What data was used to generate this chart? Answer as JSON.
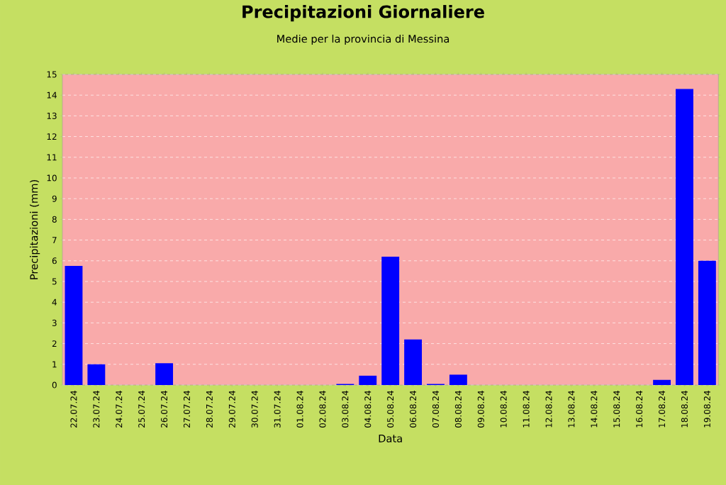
{
  "chart_data": {
    "type": "bar",
    "title": "Precipitazioni Giornaliere",
    "subtitle": "Medie per la provincia di Messina",
    "xlabel": "Data",
    "ylabel": "Precipitazioni (mm)",
    "categories": [
      "22.07.24",
      "23.07.24",
      "24.07.24",
      "25.07.24",
      "26.07.24",
      "27.07.24",
      "28.07.24",
      "29.07.24",
      "30.07.24",
      "31.07.24",
      "01.08.24",
      "02.08.24",
      "03.08.24",
      "04.08.24",
      "05.08.24",
      "06.08.24",
      "07.08.24",
      "08.08.24",
      "09.08.24",
      "10.08.24",
      "11.08.24",
      "12.08.24",
      "13.08.24",
      "14.08.24",
      "15.08.24",
      "16.08.24",
      "17.08.24",
      "18.08.24",
      "19.08.24"
    ],
    "values": [
      5.75,
      1.0,
      0,
      0,
      1.05,
      0,
      0,
      0,
      0,
      0,
      0,
      0,
      0.05,
      0.45,
      6.2,
      2.2,
      0.05,
      0.5,
      0,
      0,
      0,
      0,
      0,
      0,
      0,
      0,
      0.25,
      14.3,
      6.0
    ],
    "color": "#0000ff",
    "ylim": [
      0,
      15
    ],
    "yticks": [
      0,
      1,
      2,
      3,
      4,
      5,
      6,
      7,
      8,
      9,
      10,
      11,
      12,
      13,
      14,
      15
    ],
    "grid": "y"
  }
}
